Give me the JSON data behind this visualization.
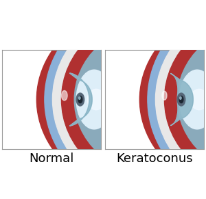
{
  "label_normal": "Normal",
  "label_keratoconus": "Keratoconus",
  "label_fontsize": 13,
  "bg": "#ffffff",
  "border_color": "#999999",
  "red_sclera": "#b03030",
  "red_sclera_dark": "#7a1a1a",
  "blue_outer": "#8ab0d8",
  "blue_outer_dark": "#6890b8",
  "white_sclera": "#e8e8e8",
  "aqueous_color": "#8aaabb",
  "aqueous_dark": "#6a8a9a",
  "lens_white": "#ddeef8",
  "lens_bright": "#f0f8ff",
  "cornea_blue": "#7aaabb",
  "cornea_light": "#aaccdd",
  "ciliary_color": "#7aaac8",
  "iris_dark": "#556677"
}
